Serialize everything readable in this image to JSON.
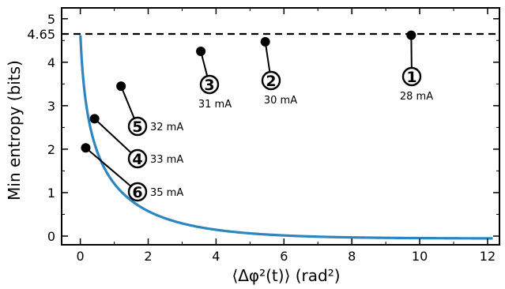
{
  "chart_data": {
    "type": "line",
    "xlabel": "⟨Δφ²(t)⟩ (rad²)",
    "ylabel": "Min entropy (bits)",
    "xlim": [
      -0.55,
      12.35
    ],
    "ylim": [
      -0.2,
      5.25
    ],
    "x_ticks": [
      "0",
      "2",
      "4",
      "6",
      "8",
      "10",
      "12"
    ],
    "y_ticks": [
      "0",
      "1",
      "2",
      "3",
      "4",
      "5"
    ],
    "reference_line": {
      "y": 4.65,
      "label": "4.65",
      "style": "dashed"
    },
    "curve_color": "#2e86c1",
    "points": [
      {
        "id": "1",
        "current": "28 mA",
        "x": 9.75,
        "y": 4.62
      },
      {
        "id": "2",
        "current": "30 mA",
        "x": 5.45,
        "y": 4.47
      },
      {
        "id": "3",
        "current": "31 mA",
        "x": 3.55,
        "y": 4.25
      },
      {
        "id": "4",
        "current": "33 mA",
        "x": 0.42,
        "y": 2.7
      },
      {
        "id": "5",
        "current": "32 mA",
        "x": 1.2,
        "y": 3.45
      },
      {
        "id": "6",
        "current": "35 mA",
        "x": 0.16,
        "y": 2.03
      }
    ],
    "grid": false,
    "legend": "none"
  }
}
